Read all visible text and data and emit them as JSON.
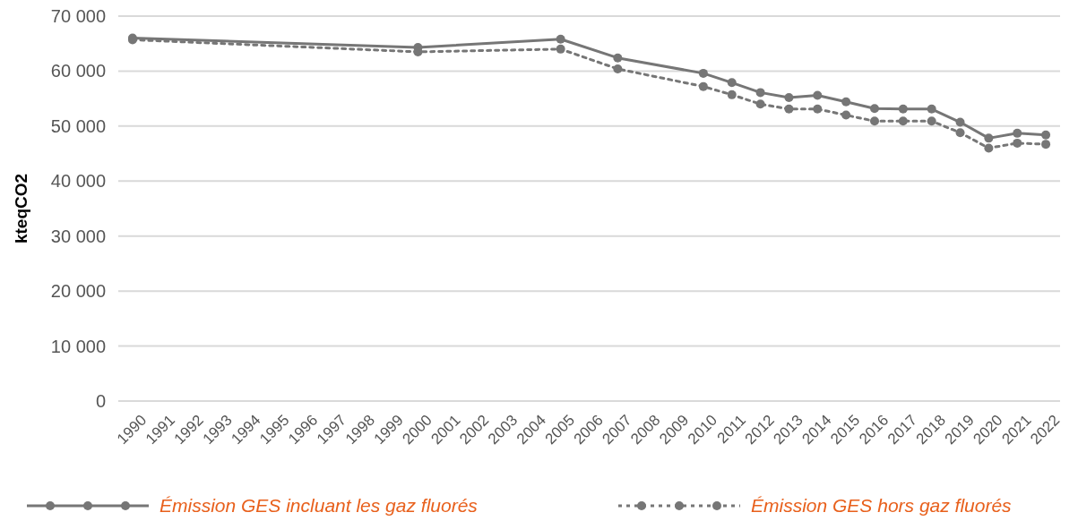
{
  "chart_data": {
    "type": "line",
    "ylabel": "kteqCO2",
    "x": [
      1990,
      2000,
      2005,
      2007,
      2010,
      2011,
      2012,
      2013,
      2014,
      2015,
      2016,
      2017,
      2018,
      2019,
      2020,
      2021,
      2022
    ],
    "series": [
      {
        "name": "Émission GES incluant les gaz fluorés",
        "color": "#767676",
        "line_style": "solid",
        "values": [
          66000,
          64300,
          65800,
          62400,
          59600,
          57900,
          56100,
          55200,
          55600,
          54400,
          53200,
          53100,
          53100,
          50700,
          47800,
          48700,
          48400
        ]
      },
      {
        "name": "Émission GES hors gaz fluorés",
        "color": "#767676",
        "line_style": "dotted",
        "values": [
          65700,
          63500,
          64000,
          60400,
          57200,
          55700,
          54000,
          53100,
          53100,
          52000,
          50900,
          50900,
          50900,
          48800,
          46000,
          46900,
          46700
        ]
      }
    ],
    "xlim": [
      1989.5,
      2022.5
    ],
    "xticks": [
      1990,
      1991,
      1992,
      1993,
      1994,
      1995,
      1996,
      1997,
      1998,
      1999,
      2000,
      2001,
      2002,
      2003,
      2004,
      2005,
      2006,
      2007,
      2008,
      2009,
      2010,
      2011,
      2012,
      2013,
      2014,
      2015,
      2016,
      2017,
      2018,
      2019,
      2020,
      2021,
      2022
    ],
    "ylim": [
      0,
      70000
    ],
    "yticks": [
      {
        "value": 0,
        "label": "0"
      },
      {
        "value": 10000,
        "label": "10 000"
      },
      {
        "value": 20000,
        "label": "20 000"
      },
      {
        "value": 30000,
        "label": "30 000"
      },
      {
        "value": 40000,
        "label": "40 000"
      },
      {
        "value": 50000,
        "label": "50 000"
      },
      {
        "value": 60000,
        "label": "60 000"
      },
      {
        "value": 70000,
        "label": "70 000"
      }
    ],
    "grid": "y",
    "legend": "bottom",
    "marker": "circle"
  }
}
